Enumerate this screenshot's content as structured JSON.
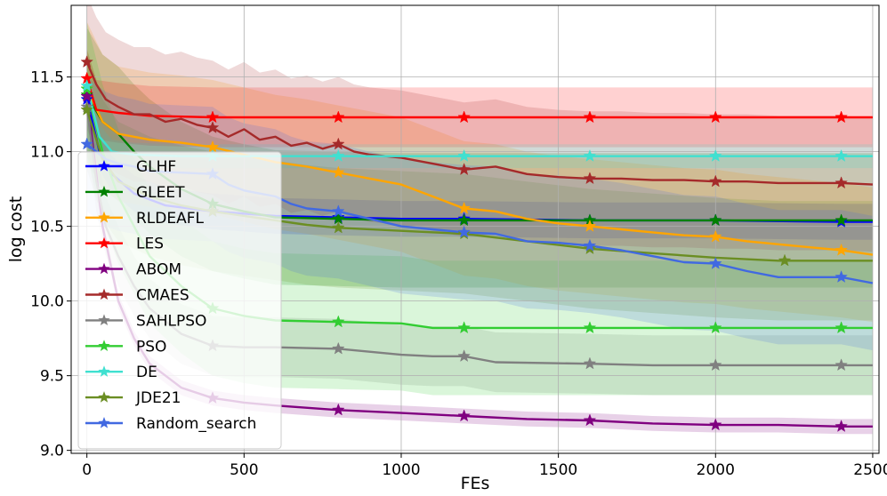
{
  "chart_data": {
    "type": "line",
    "title": "",
    "xlabel": "FEs",
    "ylabel": "log cost",
    "xlim": [
      -50,
      2520
    ],
    "ylim": [
      8.98,
      11.98
    ],
    "xticks": [
      0,
      500,
      1000,
      1500,
      2000,
      2500
    ],
    "yticks": [
      9.0,
      9.5,
      10.0,
      10.5,
      11.0,
      11.5
    ],
    "xtick_labels": [
      "0",
      "500",
      "1000",
      "1500",
      "2000",
      "2500"
    ],
    "ytick_labels": [
      "9.0",
      "9.5",
      "10.0",
      "10.5",
      "11.0",
      "11.5"
    ],
    "grid": true,
    "legend_position": "left",
    "series": [
      {
        "name": "GLHF",
        "color": "#0000ff",
        "x": [
          0,
          40,
          80,
          150,
          250,
          400,
          600,
          800,
          1000,
          1200,
          1600,
          2000,
          2400,
          2500
        ],
        "y": [
          11.35,
          11.0,
          10.85,
          10.72,
          10.64,
          10.6,
          10.57,
          10.56,
          10.55,
          10.55,
          10.54,
          10.54,
          10.53,
          10.53
        ],
        "band": 0.12,
        "marker_x": [
          0,
          400,
          800,
          1200,
          1600,
          2000,
          2400
        ]
      },
      {
        "name": "GLEET",
        "color": "#008000",
        "x": [
          0,
          50,
          100,
          150,
          200,
          300,
          400,
          500,
          600,
          800,
          1000,
          1200,
          1600,
          2000,
          2500
        ],
        "y": [
          11.38,
          11.2,
          11.12,
          11.0,
          10.9,
          10.75,
          10.65,
          10.6,
          10.56,
          10.55,
          10.54,
          10.54,
          10.54,
          10.54,
          10.54
        ],
        "band": 0.45,
        "marker_x": [
          0,
          400,
          800,
          1200,
          1600,
          2000,
          2400
        ]
      },
      {
        "name": "RLDEAFL",
        "color": "#ffa500",
        "x": [
          0,
          50,
          100,
          200,
          300,
          400,
          500,
          600,
          700,
          800,
          900,
          1000,
          1100,
          1200,
          1300,
          1400,
          1500,
          1600,
          1700,
          1800,
          1900,
          2000,
          2100,
          2200,
          2300,
          2400,
          2500
        ],
        "y": [
          11.42,
          11.2,
          11.12,
          11.08,
          11.06,
          11.03,
          10.98,
          10.93,
          10.9,
          10.86,
          10.82,
          10.78,
          10.7,
          10.62,
          10.6,
          10.55,
          10.52,
          10.5,
          10.48,
          10.46,
          10.44,
          10.43,
          10.4,
          10.38,
          10.36,
          10.34,
          10.31
        ],
        "band": 0.45,
        "marker_x": [
          0,
          400,
          800,
          1200,
          1600,
          2000,
          2400
        ]
      },
      {
        "name": "LES",
        "color": "#ff0000",
        "x": [
          0,
          30,
          100,
          200,
          400,
          800,
          1200,
          1600,
          2000,
          2500
        ],
        "y": [
          11.49,
          11.28,
          11.26,
          11.24,
          11.23,
          11.23,
          11.23,
          11.23,
          11.23,
          11.23
        ],
        "band": 0.2,
        "marker_x": [
          0,
          400,
          800,
          1200,
          1600,
          2000,
          2400
        ]
      },
      {
        "name": "ABOM",
        "color": "#800080",
        "x": [
          0,
          50,
          100,
          150,
          200,
          300,
          400,
          500,
          600,
          800,
          1000,
          1200,
          1400,
          1600,
          1800,
          2000,
          2200,
          2400,
          2500
        ],
        "y": [
          11.37,
          10.5,
          10.0,
          9.75,
          9.58,
          9.42,
          9.35,
          9.32,
          9.3,
          9.27,
          9.25,
          9.23,
          9.21,
          9.2,
          9.18,
          9.17,
          9.17,
          9.16,
          9.16
        ],
        "band": 0.05,
        "marker_x": [
          0,
          400,
          800,
          1200,
          1600,
          2000,
          2400
        ]
      },
      {
        "name": "CMAES",
        "color": "#a52a2a",
        "x": [
          0,
          30,
          60,
          100,
          150,
          200,
          250,
          300,
          350,
          400,
          450,
          500,
          550,
          600,
          650,
          700,
          750,
          800,
          850,
          900,
          950,
          1000,
          1100,
          1200,
          1300,
          1400,
          1500,
          1600,
          1700,
          1800,
          1900,
          2000,
          2100,
          2200,
          2300,
          2400,
          2500
        ],
        "y": [
          11.6,
          11.45,
          11.35,
          11.3,
          11.25,
          11.25,
          11.2,
          11.22,
          11.18,
          11.16,
          11.1,
          11.15,
          11.08,
          11.1,
          11.04,
          11.06,
          11.02,
          11.05,
          11.0,
          10.98,
          10.97,
          10.96,
          10.92,
          10.88,
          10.9,
          10.85,
          10.83,
          10.82,
          10.82,
          10.81,
          10.81,
          10.8,
          10.8,
          10.79,
          10.79,
          10.79,
          10.78
        ],
        "band": 0.45,
        "marker_x": [
          0,
          400,
          800,
          1200,
          1600,
          2000,
          2400
        ]
      },
      {
        "name": "SAHLPSO",
        "color": "#808080",
        "x": [
          0,
          30,
          60,
          100,
          150,
          200,
          300,
          400,
          500,
          600,
          800,
          1000,
          1100,
          1200,
          1300,
          1600,
          1800,
          2000,
          2400,
          2500
        ],
        "y": [
          11.3,
          10.8,
          10.5,
          10.3,
          10.1,
          9.95,
          9.78,
          9.7,
          9.69,
          9.69,
          9.68,
          9.64,
          9.63,
          9.63,
          9.59,
          9.58,
          9.57,
          9.57,
          9.57,
          9.57
        ],
        "band": 0.2,
        "marker_x": [
          0,
          400,
          800,
          1200,
          1600,
          2000,
          2400
        ]
      },
      {
        "name": "PSO",
        "color": "#32cd32",
        "x": [
          0,
          50,
          100,
          150,
          200,
          300,
          400,
          500,
          600,
          800,
          1000,
          1100,
          1200,
          1600,
          2000,
          2500
        ],
        "y": [
          11.42,
          11.0,
          10.7,
          10.5,
          10.3,
          10.1,
          9.95,
          9.9,
          9.87,
          9.86,
          9.85,
          9.82,
          9.82,
          9.82,
          9.82,
          9.82
        ],
        "band": 0.45,
        "marker_x": [
          0,
          400,
          800,
          1200,
          1600,
          2000,
          2400
        ]
      },
      {
        "name": "DE",
        "color": "#40e0d0",
        "x": [
          0,
          40,
          80,
          150,
          300,
          500,
          800,
          1000,
          1200,
          1600,
          2000,
          2500
        ],
        "y": [
          11.44,
          11.1,
          11.0,
          10.98,
          10.97,
          10.97,
          10.97,
          10.97,
          10.97,
          10.97,
          10.97,
          10.97
        ],
        "band": 0.08,
        "marker_x": [
          0,
          400,
          800,
          1200,
          1600,
          2000,
          2400
        ]
      },
      {
        "name": "JDE21",
        "color": "#6b8e23",
        "x": [
          0,
          50,
          100,
          200,
          300,
          400,
          500,
          600,
          700,
          800,
          1000,
          1200,
          1400,
          1600,
          1800,
          2000,
          2200,
          2500
        ],
        "y": [
          11.28,
          10.95,
          10.8,
          10.7,
          10.64,
          10.6,
          10.57,
          10.54,
          10.51,
          10.49,
          10.47,
          10.45,
          10.4,
          10.35,
          10.32,
          10.29,
          10.27,
          10.27
        ],
        "band": 0.4,
        "marker_x": [
          0,
          400,
          800,
          1200,
          1600,
          2220
        ]
      },
      {
        "name": "Random_search",
        "color": "#4169e1",
        "x": [
          0,
          30,
          60,
          100,
          150,
          200,
          300,
          400,
          450,
          500,
          550,
          600,
          650,
          700,
          800,
          900,
          1000,
          1100,
          1200,
          1300,
          1400,
          1500,
          1600,
          1700,
          1800,
          1900,
          2000,
          2100,
          2200,
          2300,
          2400,
          2500
        ],
        "y": [
          11.05,
          11.0,
          10.95,
          10.92,
          10.9,
          10.87,
          10.86,
          10.85,
          10.78,
          10.74,
          10.72,
          10.7,
          10.65,
          10.62,
          10.6,
          10.55,
          10.5,
          10.48,
          10.46,
          10.45,
          10.4,
          10.39,
          10.37,
          10.34,
          10.3,
          10.26,
          10.25,
          10.2,
          10.16,
          10.16,
          10.16,
          10.12
        ],
        "band": 0.45,
        "marker_x": [
          0,
          400,
          800,
          1200,
          1600,
          2000,
          2400
        ]
      }
    ]
  }
}
